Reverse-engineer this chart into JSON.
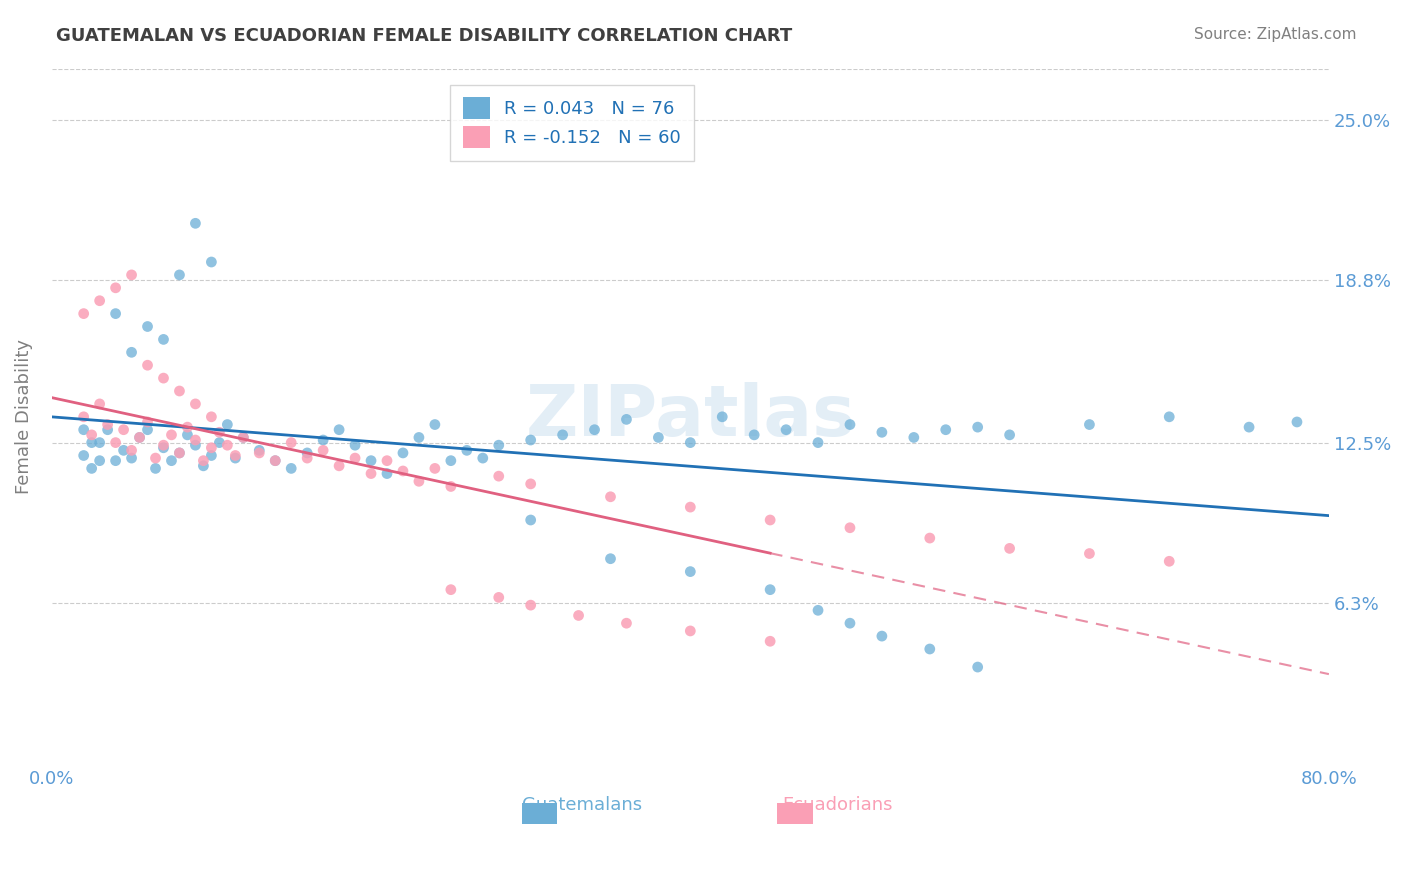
{
  "title": "GUATEMALAN VS ECUADORIAN FEMALE DISABILITY CORRELATION CHART",
  "source": "Source: ZipAtlas.com",
  "ylabel": "Female Disability",
  "xlim": [
    0.0,
    0.8
  ],
  "ylim": [
    0.0,
    0.27
  ],
  "yticks": [
    0.063,
    0.125,
    0.188,
    0.25
  ],
  "ytick_labels": [
    "6.3%",
    "12.5%",
    "18.8%",
    "25.0%"
  ],
  "blue_color": "#6baed6",
  "pink_color": "#fa9fb5",
  "blue_line_color": "#2171b5",
  "pink_line_color": "#e06080",
  "title_color": "#404040",
  "axis_label_color": "#5b9bd5",
  "guatemalan_x": [
    0.02,
    0.02,
    0.025,
    0.025,
    0.03,
    0.03,
    0.035,
    0.04,
    0.04,
    0.045,
    0.05,
    0.05,
    0.055,
    0.06,
    0.06,
    0.065,
    0.07,
    0.07,
    0.075,
    0.08,
    0.08,
    0.085,
    0.09,
    0.09,
    0.095,
    0.1,
    0.1,
    0.105,
    0.11,
    0.115,
    0.12,
    0.13,
    0.14,
    0.15,
    0.16,
    0.17,
    0.18,
    0.19,
    0.2,
    0.21,
    0.22,
    0.23,
    0.24,
    0.25,
    0.26,
    0.27,
    0.28,
    0.3,
    0.32,
    0.34,
    0.36,
    0.38,
    0.4,
    0.42,
    0.44,
    0.46,
    0.48,
    0.5,
    0.52,
    0.54,
    0.56,
    0.58,
    0.6,
    0.65,
    0.7,
    0.75,
    0.78,
    0.3,
    0.35,
    0.4,
    0.45,
    0.48,
    0.5,
    0.52,
    0.55,
    0.58
  ],
  "guatemalan_y": [
    0.12,
    0.13,
    0.115,
    0.125,
    0.125,
    0.118,
    0.13,
    0.118,
    0.175,
    0.122,
    0.119,
    0.16,
    0.127,
    0.13,
    0.17,
    0.115,
    0.123,
    0.165,
    0.118,
    0.121,
    0.19,
    0.128,
    0.124,
    0.21,
    0.116,
    0.12,
    0.195,
    0.125,
    0.132,
    0.119,
    0.127,
    0.122,
    0.118,
    0.115,
    0.121,
    0.126,
    0.13,
    0.124,
    0.118,
    0.113,
    0.121,
    0.127,
    0.132,
    0.118,
    0.122,
    0.119,
    0.124,
    0.126,
    0.128,
    0.13,
    0.134,
    0.127,
    0.125,
    0.135,
    0.128,
    0.13,
    0.125,
    0.132,
    0.129,
    0.127,
    0.13,
    0.131,
    0.128,
    0.132,
    0.135,
    0.131,
    0.133,
    0.095,
    0.08,
    0.075,
    0.068,
    0.06,
    0.055,
    0.05,
    0.045,
    0.038
  ],
  "ecuadorian_x": [
    0.02,
    0.02,
    0.025,
    0.03,
    0.03,
    0.035,
    0.04,
    0.04,
    0.045,
    0.05,
    0.05,
    0.055,
    0.06,
    0.06,
    0.065,
    0.07,
    0.07,
    0.075,
    0.08,
    0.08,
    0.085,
    0.09,
    0.09,
    0.095,
    0.1,
    0.1,
    0.105,
    0.11,
    0.115,
    0.12,
    0.13,
    0.14,
    0.15,
    0.16,
    0.17,
    0.18,
    0.19,
    0.2,
    0.21,
    0.22,
    0.23,
    0.24,
    0.25,
    0.28,
    0.3,
    0.35,
    0.4,
    0.45,
    0.5,
    0.55,
    0.6,
    0.65,
    0.7,
    0.25,
    0.28,
    0.3,
    0.33,
    0.36,
    0.4,
    0.45
  ],
  "ecuadorian_y": [
    0.135,
    0.175,
    0.128,
    0.14,
    0.18,
    0.132,
    0.125,
    0.185,
    0.13,
    0.122,
    0.19,
    0.127,
    0.133,
    0.155,
    0.119,
    0.124,
    0.15,
    0.128,
    0.121,
    0.145,
    0.131,
    0.126,
    0.14,
    0.118,
    0.123,
    0.135,
    0.129,
    0.124,
    0.12,
    0.127,
    0.121,
    0.118,
    0.125,
    0.119,
    0.122,
    0.116,
    0.119,
    0.113,
    0.118,
    0.114,
    0.11,
    0.115,
    0.108,
    0.112,
    0.109,
    0.104,
    0.1,
    0.095,
    0.092,
    0.088,
    0.084,
    0.082,
    0.079,
    0.068,
    0.065,
    0.062,
    0.058,
    0.055,
    0.052,
    0.048
  ]
}
